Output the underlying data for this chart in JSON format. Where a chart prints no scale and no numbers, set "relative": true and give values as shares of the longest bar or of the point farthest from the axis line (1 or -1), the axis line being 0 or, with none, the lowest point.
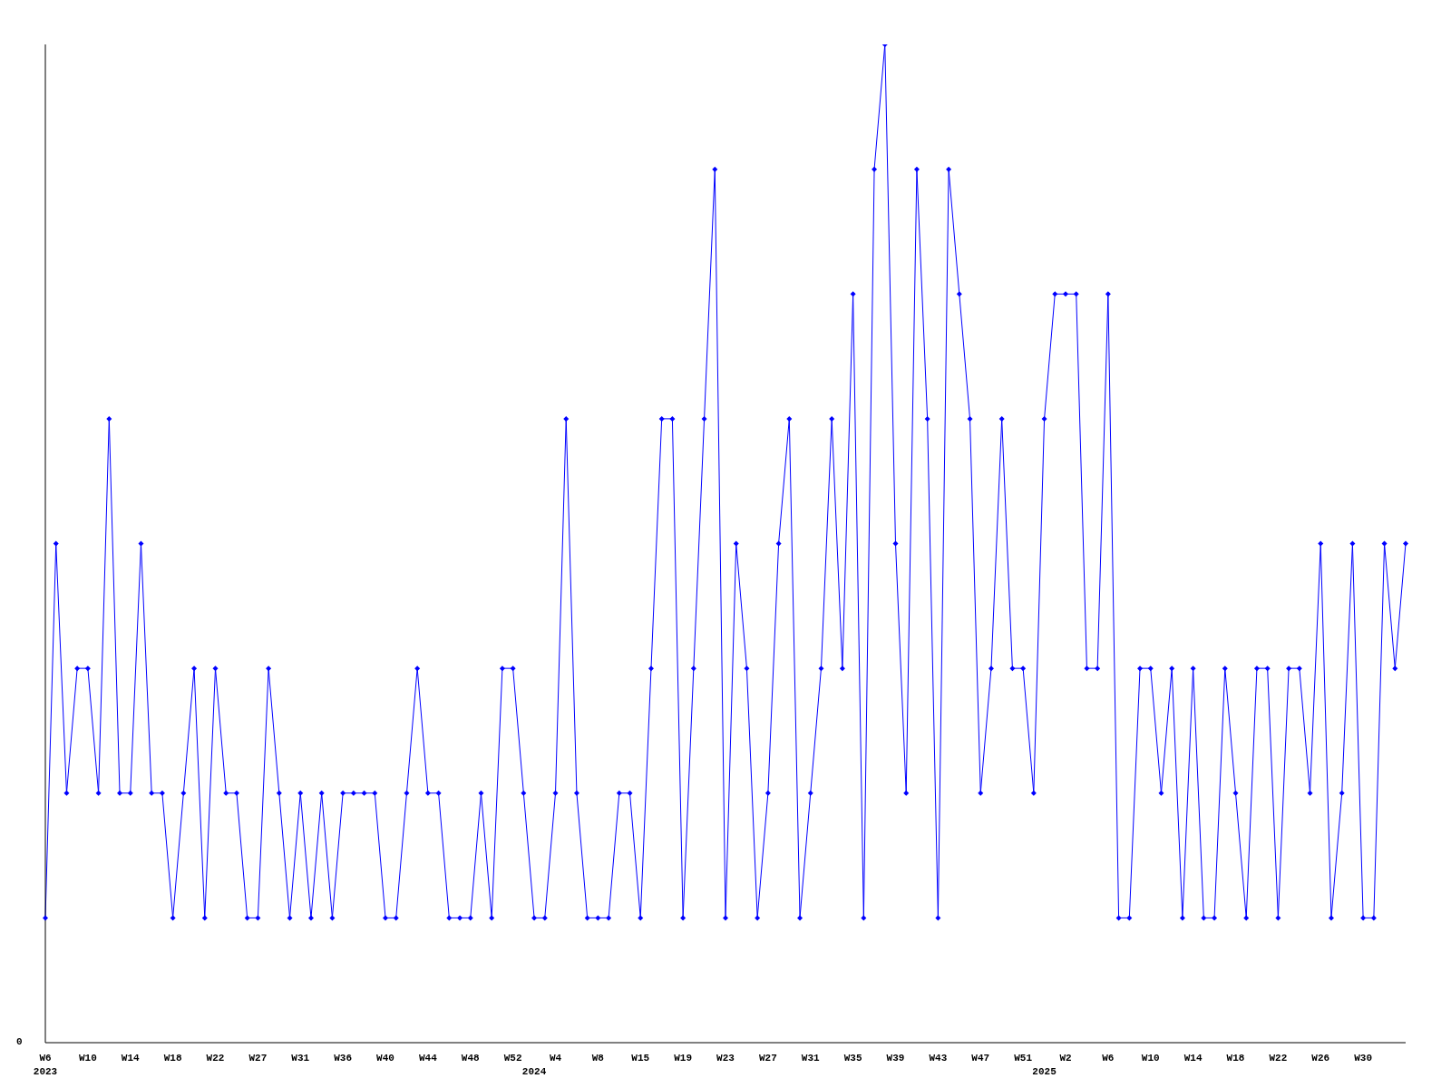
{
  "chart_data": {
    "type": "line",
    "relative": true,
    "marker": "diamond",
    "line_style": "solid",
    "grid": false,
    "legend": false,
    "annotations": [
      "0"
    ],
    "categories": [
      "W6\n2023",
      null,
      null,
      null,
      "W10",
      null,
      null,
      null,
      "W14",
      null,
      null,
      null,
      "W18",
      null,
      null,
      null,
      "W22",
      null,
      null,
      null,
      "W27",
      null,
      null,
      null,
      "W31",
      null,
      null,
      null,
      "W36",
      null,
      null,
      null,
      "W40",
      null,
      null,
      null,
      "W44",
      null,
      null,
      null,
      "W48",
      null,
      null,
      null,
      "W52",
      null,
      "\n2024",
      null,
      "W4",
      null,
      null,
      null,
      "W8",
      null,
      null,
      null,
      "W15",
      null,
      null,
      null,
      "W19",
      null,
      null,
      null,
      "W23",
      null,
      null,
      null,
      "W27",
      null,
      null,
      null,
      "W31",
      null,
      null,
      null,
      "W35",
      null,
      null,
      null,
      "W39",
      null,
      null,
      null,
      "W43",
      null,
      null,
      null,
      "W47",
      null,
      null,
      null,
      "W51",
      null,
      "\n2025",
      null,
      "W2",
      null,
      null,
      null,
      "W6",
      null,
      null,
      null,
      "W10",
      null,
      null,
      null,
      "W14",
      null,
      null,
      null,
      "W18",
      null,
      null,
      null,
      "W22",
      null,
      null,
      null,
      "W26",
      null,
      null,
      null,
      "W30",
      null,
      null,
      null,
      null
    ],
    "series": [
      {
        "color": "#0000ff",
        "values": [
          0.125,
          0.5,
          0.25,
          0.375,
          0.375,
          0.25,
          0.625,
          0.25,
          0.25,
          0.5,
          0.25,
          0.25,
          0.125,
          0.25,
          0.375,
          0.125,
          0.375,
          0.25,
          0.25,
          0.125,
          0.125,
          0.375,
          0.25,
          0.125,
          0.25,
          0.125,
          0.25,
          0.125,
          0.25,
          0.25,
          0.25,
          0.25,
          0.125,
          0.125,
          0.25,
          0.375,
          0.25,
          0.25,
          0.125,
          0.125,
          0.125,
          0.25,
          0.125,
          0.375,
          0.375,
          0.25,
          0.125,
          0.125,
          0.25,
          0.625,
          0.25,
          0.125,
          0.125,
          0.125,
          0.25,
          0.25,
          0.125,
          0.375,
          0.625,
          0.625,
          0.125,
          0.375,
          0.625,
          0.875,
          0.125,
          0.5,
          0.375,
          0.125,
          0.25,
          0.5,
          0.625,
          0.125,
          0.25,
          0.375,
          0.625,
          0.375,
          0.75,
          0.125,
          0.875,
          1,
          0.5,
          0.25,
          0.875,
          0.625,
          0.125,
          0.875,
          0.75,
          0.625,
          0.25,
          0.375,
          0.625,
          0.375,
          0.375,
          0.25,
          0.625,
          0.75,
          0.75,
          0.75,
          0.375,
          0.375,
          0.75,
          0.125,
          0.125,
          0.375,
          0.375,
          0.25,
          0.375,
          0.125,
          0.375,
          0.125,
          0.125,
          0.375,
          0.25,
          0.125,
          0.375,
          0.375,
          0.125,
          0.375,
          0.375,
          0.25,
          0.5,
          0.125,
          0.25,
          0.5,
          0.125,
          0.125,
          0.5,
          0.375,
          0.5
        ]
      }
    ]
  }
}
